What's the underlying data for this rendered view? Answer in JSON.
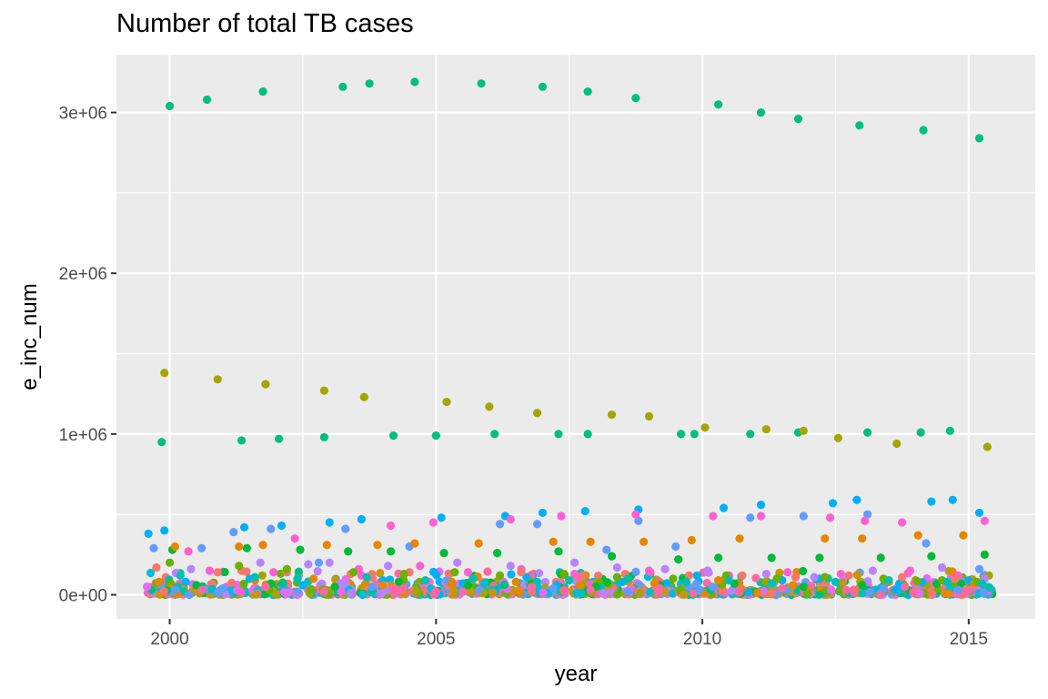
{
  "chart_data": {
    "type": "scatter",
    "title": "Number of total TB cases",
    "xlabel": "year",
    "ylabel": "e_inc_num",
    "xlim": [
      1999.0,
      2016.25
    ],
    "ylim": [
      -150000,
      3360000
    ],
    "x_ticks": [
      2000,
      2005,
      2010,
      2015
    ],
    "x_tick_labels": [
      "2000",
      "2005",
      "2010",
      "2015"
    ],
    "y_ticks": [
      0,
      1000000,
      2000000,
      3000000
    ],
    "y_tick_labels": [
      "0e+00",
      "1e+06",
      "2e+06",
      "3e+06"
    ],
    "grid": true,
    "legend": "none",
    "marker": "point (jittered around each year)",
    "colors": [
      "#f8766d",
      "#e58700",
      "#c99800",
      "#a3a500",
      "#6bb100",
      "#00ba38",
      "#00bf7d",
      "#00c0af",
      "#00bcd8",
      "#00b0f6",
      "#619cff",
      "#b983ff",
      "#e76bf3",
      "#fd61d1",
      "#ff67a4"
    ],
    "series": [
      {
        "color": "#00bf7d",
        "points": [
          [
            2000.0,
            3040000
          ],
          [
            2000.7,
            3080000
          ],
          [
            2001.75,
            3130000
          ],
          [
            2003.25,
            3160000
          ],
          [
            2003.75,
            3180000
          ],
          [
            2004.6,
            3190000
          ],
          [
            2005.85,
            3180000
          ],
          [
            2007.0,
            3160000
          ],
          [
            2007.85,
            3130000
          ],
          [
            2008.75,
            3090000
          ],
          [
            2010.3,
            3050000
          ],
          [
            2011.1,
            3000000
          ],
          [
            2011.8,
            2960000
          ],
          [
            2012.95,
            2920000
          ],
          [
            2014.15,
            2890000
          ],
          [
            2015.2,
            2840000
          ],
          [
            1999.85,
            950000
          ],
          [
            2001.35,
            960000
          ],
          [
            2002.05,
            970000
          ],
          [
            2002.9,
            980000
          ],
          [
            2004.2,
            990000
          ],
          [
            2005.0,
            990000
          ],
          [
            2006.1,
            1000000
          ],
          [
            2007.3,
            1000000
          ],
          [
            2007.85,
            1000000
          ],
          [
            2009.6,
            1000000
          ],
          [
            2009.85,
            1000000
          ],
          [
            2010.9,
            1000000
          ],
          [
            2011.8,
            1010000
          ],
          [
            2013.1,
            1010000
          ],
          [
            2014.1,
            1010000
          ],
          [
            2014.65,
            1020000
          ]
        ]
      },
      {
        "color": "#a3a500",
        "points": [
          [
            1999.9,
            1380000
          ],
          [
            2000.9,
            1340000
          ],
          [
            2001.8,
            1310000
          ],
          [
            2002.9,
            1270000
          ],
          [
            2003.65,
            1230000
          ],
          [
            2005.2,
            1200000
          ],
          [
            2006.0,
            1170000
          ],
          [
            2006.9,
            1130000
          ],
          [
            2008.3,
            1120000
          ],
          [
            2009.0,
            1110000
          ],
          [
            2010.05,
            1040000
          ],
          [
            2011.2,
            1030000
          ],
          [
            2011.9,
            1020000
          ],
          [
            2012.55,
            975000
          ],
          [
            2013.65,
            940000
          ],
          [
            2015.35,
            920000
          ]
        ]
      },
      {
        "color": "#00b0f6",
        "points": [
          [
            1999.6,
            380000
          ],
          [
            1999.9,
            400000
          ],
          [
            2001.4,
            420000
          ],
          [
            2002.1,
            430000
          ],
          [
            2003.0,
            450000
          ],
          [
            2003.6,
            470000
          ],
          [
            2005.1,
            480000
          ],
          [
            2006.3,
            490000
          ],
          [
            2007.0,
            510000
          ],
          [
            2007.8,
            520000
          ],
          [
            2008.8,
            530000
          ],
          [
            2010.4,
            540000
          ],
          [
            2011.1,
            560000
          ],
          [
            2012.45,
            570000
          ],
          [
            2012.9,
            590000
          ],
          [
            2014.3,
            580000
          ],
          [
            2014.7,
            590000
          ],
          [
            2015.2,
            510000
          ],
          [
            2000.3,
            80000
          ],
          [
            2001.5,
            100000
          ],
          [
            2002.5,
            60000
          ],
          [
            2004.0,
            90000
          ],
          [
            2005.5,
            70000
          ],
          [
            2006.7,
            110000
          ],
          [
            2008.5,
            80000
          ],
          [
            2009.9,
            120000
          ],
          [
            2011.5,
            90000
          ],
          [
            2012.2,
            100000
          ],
          [
            2013.7,
            70000
          ],
          [
            2015.0,
            90000
          ]
        ]
      },
      {
        "color": "#619cff",
        "points": [
          [
            1999.7,
            290000
          ],
          [
            2000.6,
            290000
          ],
          [
            2001.2,
            390000
          ],
          [
            2001.9,
            410000
          ],
          [
            2002.8,
            200000
          ],
          [
            2003.3,
            410000
          ],
          [
            2004.5,
            300000
          ],
          [
            2005.2,
            90000
          ],
          [
            2006.2,
            440000
          ],
          [
            2006.9,
            440000
          ],
          [
            2008.2,
            280000
          ],
          [
            2008.8,
            460000
          ],
          [
            2009.5,
            300000
          ],
          [
            2010.9,
            480000
          ],
          [
            2011.9,
            490000
          ],
          [
            2013.1,
            500000
          ],
          [
            2014.2,
            320000
          ],
          [
            2015.2,
            160000
          ],
          [
            2000.1,
            30000
          ],
          [
            2001.0,
            40000
          ],
          [
            2002.4,
            20000
          ],
          [
            2003.8,
            50000
          ],
          [
            2005.8,
            30000
          ],
          [
            2007.2,
            40000
          ],
          [
            2008.6,
            20000
          ],
          [
            2010.2,
            50000
          ],
          [
            2011.6,
            30000
          ],
          [
            2013.4,
            40000
          ],
          [
            2014.8,
            30000
          ]
        ]
      },
      {
        "color": "#00ba38",
        "points": [
          [
            2000.05,
            280000
          ],
          [
            2001.45,
            290000
          ],
          [
            2002.45,
            280000
          ],
          [
            2003.35,
            270000
          ],
          [
            2004.15,
            270000
          ],
          [
            2005.15,
            260000
          ],
          [
            2006.15,
            260000
          ],
          [
            2007.3,
            270000
          ],
          [
            2008.3,
            240000
          ],
          [
            2009.55,
            220000
          ],
          [
            2010.3,
            230000
          ],
          [
            2011.3,
            230000
          ],
          [
            2012.2,
            230000
          ],
          [
            2013.35,
            230000
          ],
          [
            2014.3,
            240000
          ],
          [
            2015.3,
            250000
          ],
          [
            2000.5,
            60000
          ],
          [
            2001.9,
            70000
          ],
          [
            2003.1,
            50000
          ],
          [
            2004.3,
            80000
          ],
          [
            2005.6,
            60000
          ],
          [
            2006.8,
            70000
          ],
          [
            2008.0,
            50000
          ],
          [
            2009.2,
            60000
          ],
          [
            2010.6,
            70000
          ],
          [
            2011.9,
            50000
          ],
          [
            2013.0,
            60000
          ],
          [
            2014.4,
            70000
          ]
        ]
      },
      {
        "color": "#e58700",
        "points": [
          [
            2000.1,
            300000
          ],
          [
            2001.3,
            300000
          ],
          [
            2001.75,
            310000
          ],
          [
            2002.95,
            310000
          ],
          [
            2003.9,
            310000
          ],
          [
            2004.6,
            320000
          ],
          [
            2005.8,
            320000
          ],
          [
            2007.2,
            330000
          ],
          [
            2007.9,
            330000
          ],
          [
            2008.9,
            330000
          ],
          [
            2009.8,
            340000
          ],
          [
            2010.7,
            350000
          ],
          [
            2012.3,
            350000
          ],
          [
            2013.0,
            350000
          ],
          [
            2014.05,
            370000
          ],
          [
            2014.9,
            370000
          ],
          [
            1999.8,
            80000
          ],
          [
            2001.6,
            90000
          ],
          [
            2002.7,
            100000
          ],
          [
            2004.0,
            60000
          ],
          [
            2005.3,
            70000
          ],
          [
            2006.5,
            80000
          ],
          [
            2007.7,
            60000
          ],
          [
            2009.1,
            70000
          ],
          [
            2010.3,
            90000
          ],
          [
            2011.7,
            60000
          ],
          [
            2013.5,
            80000
          ],
          [
            2015.1,
            70000
          ]
        ]
      },
      {
        "color": "#b983ff",
        "points": [
          [
            2000.4,
            160000
          ],
          [
            2001.7,
            200000
          ],
          [
            2002.6,
            190000
          ],
          [
            2003.0,
            200000
          ],
          [
            2004.1,
            180000
          ],
          [
            2005.4,
            200000
          ],
          [
            2006.4,
            180000
          ],
          [
            2007.6,
            200000
          ],
          [
            2008.4,
            170000
          ],
          [
            2009.3,
            160000
          ],
          [
            2010.1,
            150000
          ],
          [
            2011.2,
            130000
          ],
          [
            2012.1,
            110000
          ],
          [
            2013.2,
            150000
          ],
          [
            2014.5,
            170000
          ],
          [
            2015.3,
            100000
          ]
        ]
      },
      {
        "color": "#fd61d1",
        "points": [
          [
            2000.35,
            270000
          ],
          [
            2002.35,
            350000
          ],
          [
            2003.55,
            160000
          ],
          [
            2004.15,
            430000
          ],
          [
            2004.95,
            450000
          ],
          [
            2006.4,
            470000
          ],
          [
            2007.35,
            490000
          ],
          [
            2008.75,
            500000
          ],
          [
            2010.2,
            490000
          ],
          [
            2011.1,
            490000
          ],
          [
            2012.4,
            480000
          ],
          [
            2013.05,
            460000
          ],
          [
            2013.75,
            450000
          ],
          [
            2015.3,
            460000
          ],
          [
            2000.75,
            150000
          ],
          [
            2001.95,
            140000
          ],
          [
            2003.6,
            120000
          ],
          [
            2004.7,
            180000
          ],
          [
            2005.6,
            140000
          ],
          [
            2006.6,
            160000
          ],
          [
            2007.6,
            130000
          ],
          [
            2009.0,
            150000
          ],
          [
            2010.5,
            120000
          ],
          [
            2011.6,
            140000
          ],
          [
            2012.6,
            130000
          ],
          [
            2013.9,
            150000
          ],
          [
            2014.8,
            120000
          ]
        ]
      },
      {
        "color": "#f8766d",
        "points": [
          [
            1999.75,
            170000
          ],
          [
            2000.9,
            140000
          ],
          [
            2001.35,
            150000
          ],
          [
            2002.2,
            140000
          ],
          [
            2003.4,
            130000
          ],
          [
            2004.5,
            140000
          ],
          [
            2005.25,
            130000
          ],
          [
            2006.6,
            140000
          ],
          [
            2007.75,
            120000
          ],
          [
            2008.55,
            130000
          ],
          [
            2009.75,
            120000
          ],
          [
            2010.75,
            120000
          ],
          [
            2011.75,
            110000
          ],
          [
            2012.75,
            120000
          ],
          [
            2013.75,
            110000
          ],
          [
            2014.75,
            100000
          ]
        ]
      },
      {
        "color": "#6bb100",
        "points": [
          [
            2000.0,
            200000
          ],
          [
            2001.3,
            180000
          ],
          [
            2002.2,
            160000
          ],
          [
            2003.45,
            140000
          ],
          [
            2004.4,
            130000
          ],
          [
            2005.35,
            140000
          ],
          [
            2006.2,
            120000
          ],
          [
            2007.4,
            130000
          ],
          [
            2008.4,
            110000
          ],
          [
            2009.45,
            100000
          ],
          [
            2010.45,
            120000
          ],
          [
            2011.4,
            100000
          ],
          [
            2012.3,
            110000
          ],
          [
            2013.4,
            100000
          ],
          [
            2014.5,
            90000
          ],
          [
            2015.15,
            80000
          ]
        ]
      },
      {
        "color": "#00c0af",
        "points": [
          [
            2000.2,
            120000
          ],
          [
            2001.6,
            110000
          ],
          [
            2002.4,
            100000
          ],
          [
            2003.7,
            110000
          ],
          [
            2004.8,
            90000
          ],
          [
            2005.7,
            100000
          ],
          [
            2006.9,
            80000
          ],
          [
            2007.5,
            90000
          ],
          [
            2008.6,
            100000
          ],
          [
            2009.7,
            80000
          ],
          [
            2010.5,
            90000
          ],
          [
            2011.3,
            70000
          ],
          [
            2012.5,
            80000
          ],
          [
            2013.5,
            90000
          ],
          [
            2014.6,
            80000
          ],
          [
            2015.25,
            70000
          ]
        ]
      },
      {
        "color": "#ff67a4",
        "points": [
          [
            2000.6,
            30000
          ],
          [
            2001.8,
            50000
          ],
          [
            2002.9,
            20000
          ],
          [
            2004.2,
            40000
          ],
          [
            2005.5,
            20000
          ],
          [
            2006.8,
            50000
          ],
          [
            2007.9,
            30000
          ],
          [
            2009.2,
            40000
          ],
          [
            2010.7,
            20000
          ],
          [
            2011.5,
            40000
          ],
          [
            2012.7,
            30000
          ],
          [
            2013.8,
            50000
          ],
          [
            2015.0,
            30000
          ]
        ]
      }
    ]
  }
}
